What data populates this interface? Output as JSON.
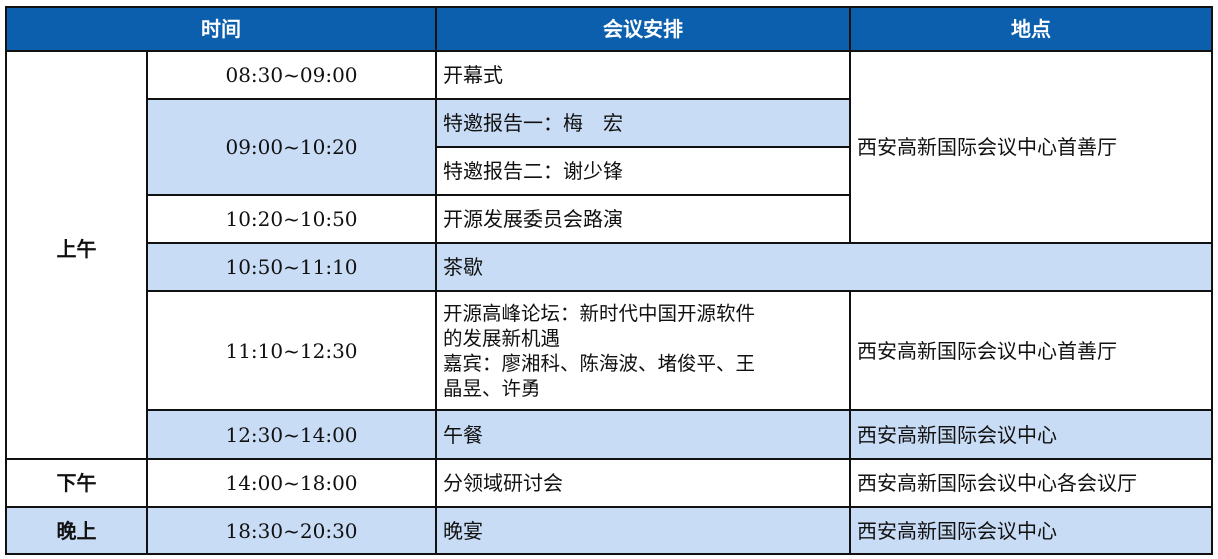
{
  "header": {
    "time": "时间",
    "agenda": "会议安排",
    "location": "地点"
  },
  "colors": {
    "header": "#0b5fad",
    "highlight": "#c9dcf5"
  },
  "periods": [
    "上午",
    "下午",
    "晚上"
  ],
  "rows": [
    {
      "time": "08:30~09:00",
      "agenda": "开幕式"
    },
    {
      "time": "09:00~10:20",
      "agenda": [
        "特邀报告一：梅　宏",
        "特邀报告二：谢少锋"
      ]
    },
    {
      "time": "10:20~10:50",
      "agenda": "开源发展委员会路演"
    },
    {
      "time": "10:50~11:10",
      "agenda": "茶歇"
    },
    {
      "time": "11:10~12:30",
      "agenda": [
        "开源高峰论坛：新时代中国开源软件",
        "的发展新机遇",
        "嘉宾：廖湘科、陈海波、堵俊平、王",
        "晶昱、许勇"
      ],
      "location": "西安高新国际会议中心首善厅"
    },
    {
      "time": "12:30~14:00",
      "agenda": "午餐",
      "location": "西安高新国际会议中心"
    },
    {
      "time": "14:00~18:00",
      "agenda": "分领域研讨会",
      "location": "西安高新国际会议中心各会议厅"
    },
    {
      "time": "18:30~20:30",
      "agenda": "晚宴",
      "location": "西安高新国际会议中心"
    }
  ],
  "location_morning": "西安高新国际会议中心首善厅"
}
